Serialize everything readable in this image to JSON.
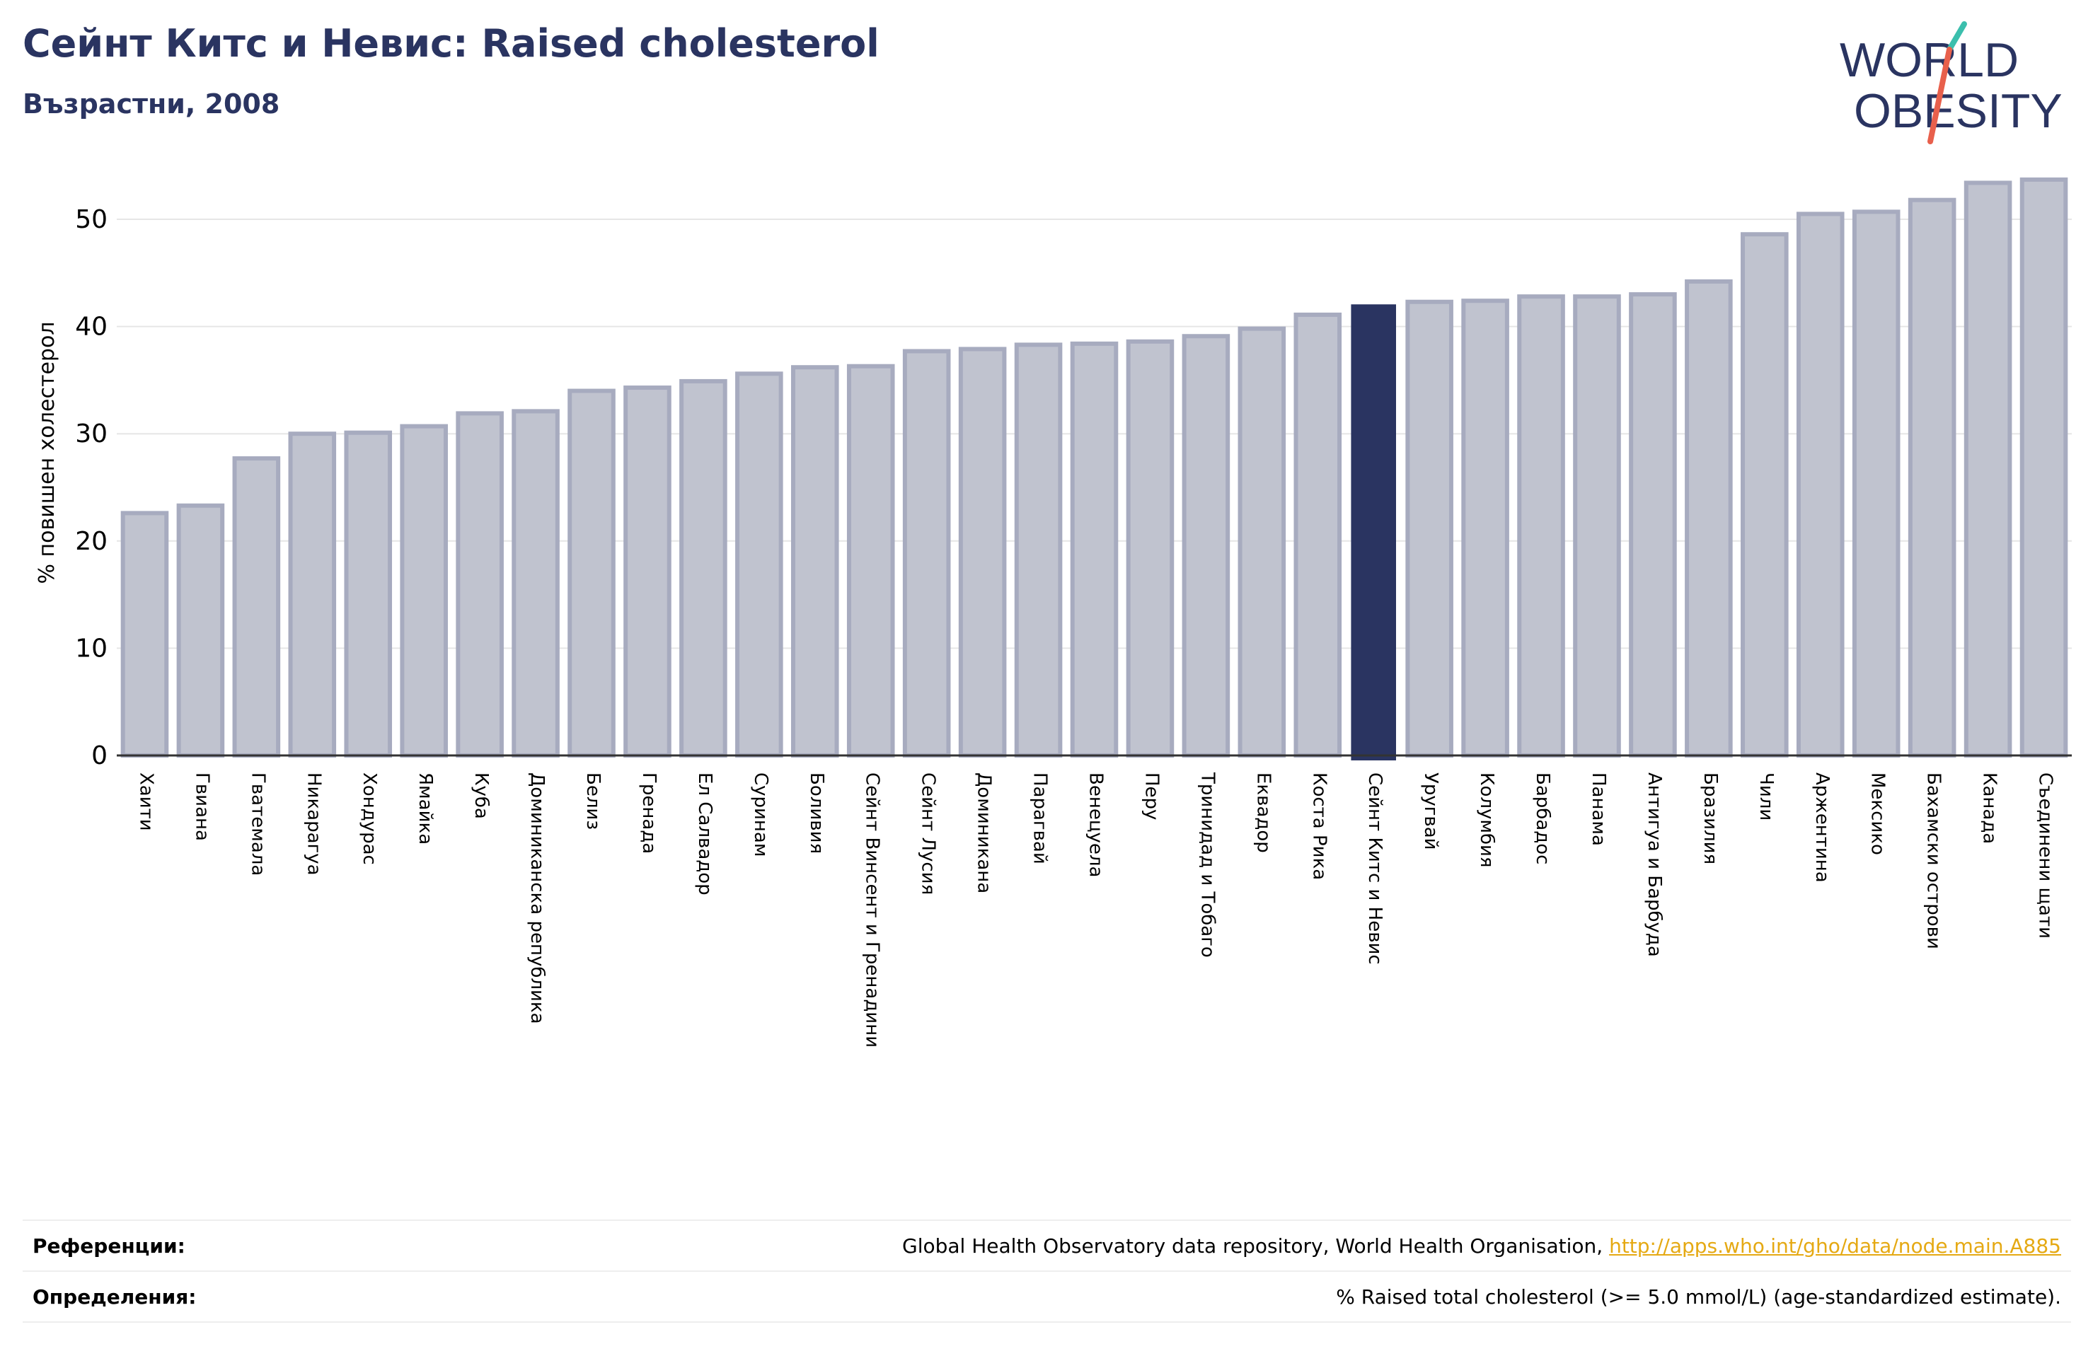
{
  "header": {
    "title": "Сейнт Китс и Невис: Raised cholesterol",
    "subtitle": "Възрастни, 2008"
  },
  "logo": {
    "line1": "WORLD",
    "line2": "OBESITY",
    "icon": "world-obesity-logo",
    "colors": {
      "text": "#2a3461",
      "slash_top": "#3bbfad",
      "slash_bottom": "#e8604c"
    }
  },
  "colors": {
    "bar": "#c0c3cf",
    "bar_border": "#a7abbf",
    "highlight": "#2a3461",
    "grid": "#e6e6e6",
    "axis": "#333333"
  },
  "chart_data": {
    "type": "bar",
    "title": "Сейнт Китс и Невис: Raised cholesterol",
    "subtitle": "Възрастни, 2008",
    "ylabel": "% повишен холестерол",
    "xlabel": "",
    "ylim": [
      0,
      55
    ],
    "yticks": [
      0,
      10,
      20,
      30,
      40,
      50
    ],
    "grid": true,
    "highlight": "Сейнт Китс и Невис",
    "categories": [
      "Хаити",
      "Гвиана",
      "Гватемала",
      "Никарагуа",
      "Хондурас",
      "Ямайка",
      "Куба",
      "Доминиканска република",
      "Белиз",
      "Гренада",
      "Ел Салвадор",
      "Суринам",
      "Боливия",
      "Сейнт Винсент и Гренадини",
      "Сейнт Лусия",
      "Доминикана",
      "Парагвай",
      "Венецуела",
      "Перу",
      "Тринидад и Тобаго",
      "Еквадор",
      "Коста Рика",
      "Сейнт Китс и Невис",
      "Уругвай",
      "Колумбия",
      "Барбадос",
      "Панама",
      "Антигуа и Барбуда",
      "Бразилия",
      "Чили",
      "Аржентина",
      "Мексико",
      "Бахамски острови",
      "Канада",
      "Съединени щати"
    ],
    "values": [
      22.6,
      23.3,
      27.7,
      30.0,
      30.1,
      30.7,
      31.9,
      32.1,
      34.0,
      34.3,
      34.9,
      35.6,
      36.2,
      36.3,
      37.7,
      37.9,
      38.3,
      38.4,
      38.6,
      39.1,
      39.8,
      41.1,
      42.0,
      42.3,
      42.4,
      42.8,
      42.8,
      43.0,
      44.2,
      48.6,
      50.5,
      50.7,
      51.8,
      53.4,
      53.7
    ]
  },
  "footer": {
    "references_label": "Референции:",
    "references_text": "Global Health Observatory data repository, World Health Organisation, ",
    "references_link": "http://apps.who.int/gho/data/node.main.A885",
    "definitions_label": "Определения:",
    "definitions_text": "% Raised total cholesterol (>= 5.0 mmol/L) (age-standardized estimate)."
  }
}
